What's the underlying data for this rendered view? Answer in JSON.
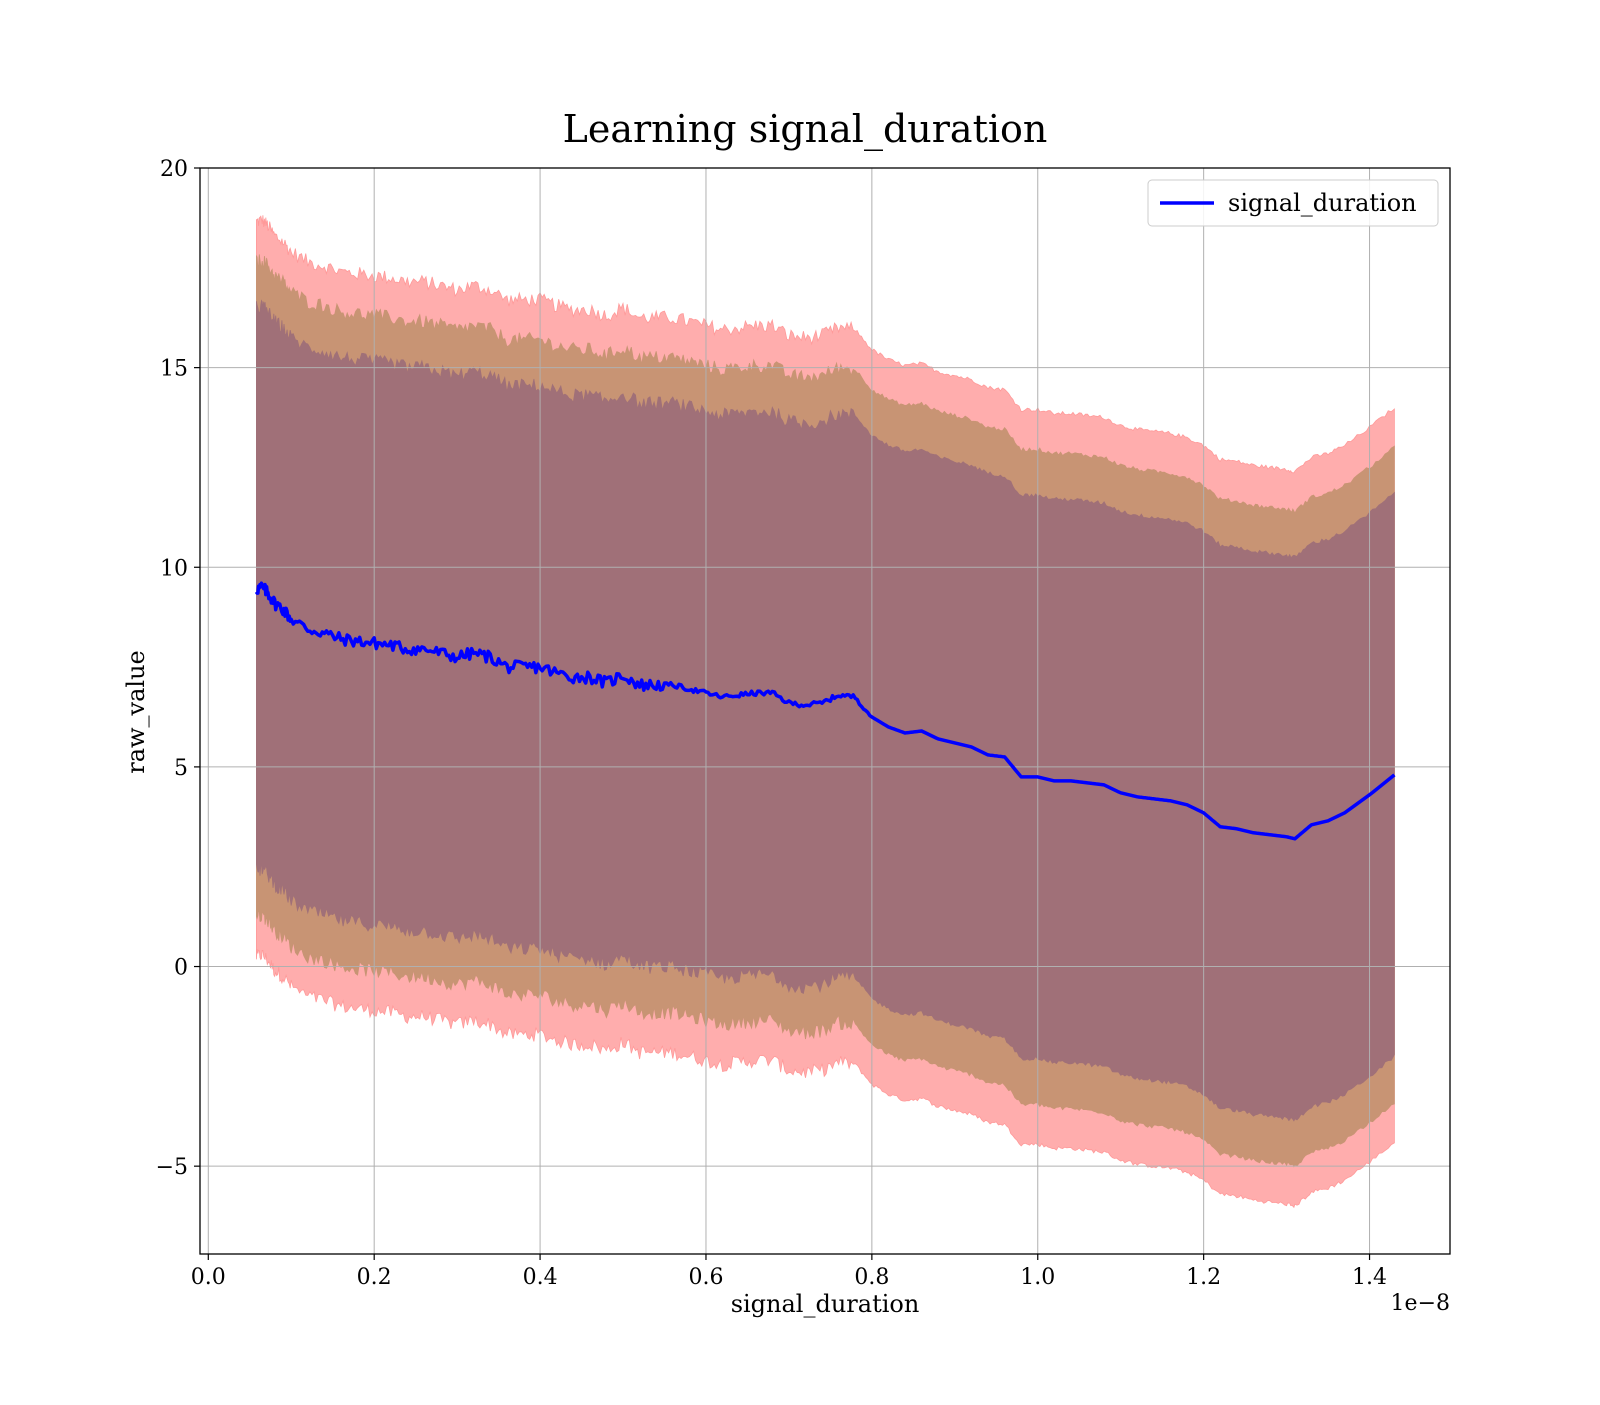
{
  "chart_data": {
    "type": "area",
    "title": "Learning signal_duration",
    "xlabel": "signal_duration",
    "ylabel": "raw_value",
    "x_offset_label": "1e−8",
    "x_scale": 1e-08,
    "xlim": [
      -0.01,
      1.497
    ],
    "ylim": [
      -7.2,
      20
    ],
    "x_ticks": [
      0.0,
      0.2,
      0.4,
      0.6,
      0.8,
      1.0,
      1.2,
      1.4
    ],
    "x_tick_labels": [
      "0.0",
      "0.2",
      "0.4",
      "0.6",
      "0.8",
      "1.0",
      "1.2",
      "1.4"
    ],
    "y_ticks": [
      -5,
      0,
      5,
      10,
      15,
      20
    ],
    "y_tick_labels": [
      "−5",
      "0",
      "5",
      "10",
      "15",
      "20"
    ],
    "grid": true,
    "legend": {
      "position": "upper right",
      "entries": [
        "signal_duration"
      ]
    },
    "colors": {
      "line": "#0000ff",
      "band3": "#ff9999",
      "band2": "#c89474",
      "band1": "#a07078",
      "grid": "#b0b0b0"
    },
    "series": [
      {
        "name": "signal_duration",
        "style": "line",
        "x": [
          0.058,
          0.065,
          0.072,
          0.08,
          0.09,
          0.1,
          0.12,
          0.14,
          0.16,
          0.18,
          0.2,
          0.22,
          0.24,
          0.26,
          0.28,
          0.3,
          0.32,
          0.34,
          0.36,
          0.38,
          0.4,
          0.42,
          0.44,
          0.46,
          0.48,
          0.5,
          0.52,
          0.54,
          0.56,
          0.58,
          0.6,
          0.62,
          0.64,
          0.66,
          0.68,
          0.7,
          0.72,
          0.74,
          0.76,
          0.78,
          0.8,
          0.82,
          0.84,
          0.86,
          0.88,
          0.9,
          0.92,
          0.94,
          0.96,
          0.98,
          1.0,
          1.02,
          1.04,
          1.06,
          1.08,
          1.1,
          1.12,
          1.14,
          1.16,
          1.18,
          1.2,
          1.22,
          1.24,
          1.26,
          1.28,
          1.3,
          1.31,
          1.33,
          1.35,
          1.37,
          1.4,
          1.43
        ],
        "y": [
          9.45,
          9.5,
          9.35,
          9.1,
          8.95,
          8.7,
          8.45,
          8.35,
          8.2,
          8.15,
          8.1,
          8.05,
          7.95,
          7.95,
          7.85,
          7.75,
          7.85,
          7.75,
          7.5,
          7.5,
          7.5,
          7.35,
          7.25,
          7.25,
          7.1,
          7.3,
          7.05,
          7.05,
          7.05,
          6.95,
          6.85,
          6.75,
          6.8,
          6.85,
          6.85,
          6.6,
          6.55,
          6.6,
          6.8,
          6.75,
          6.25,
          6.0,
          5.85,
          5.9,
          5.7,
          5.6,
          5.5,
          5.3,
          5.25,
          4.75,
          4.75,
          4.65,
          4.65,
          4.6,
          4.55,
          4.35,
          4.25,
          4.2,
          4.15,
          4.05,
          3.85,
          3.5,
          3.45,
          3.35,
          3.3,
          3.25,
          3.2,
          3.55,
          3.65,
          3.85,
          4.3,
          4.8
        ]
      },
      {
        "name": "",
        "style": "band",
        "half_width": 7.05,
        "color_key": "band1"
      },
      {
        "name": "",
        "style": "band",
        "half_width": 8.2,
        "color_key": "band2"
      },
      {
        "name": "",
        "style": "band",
        "half_width": 9.2,
        "color_key": "band3"
      }
    ]
  }
}
